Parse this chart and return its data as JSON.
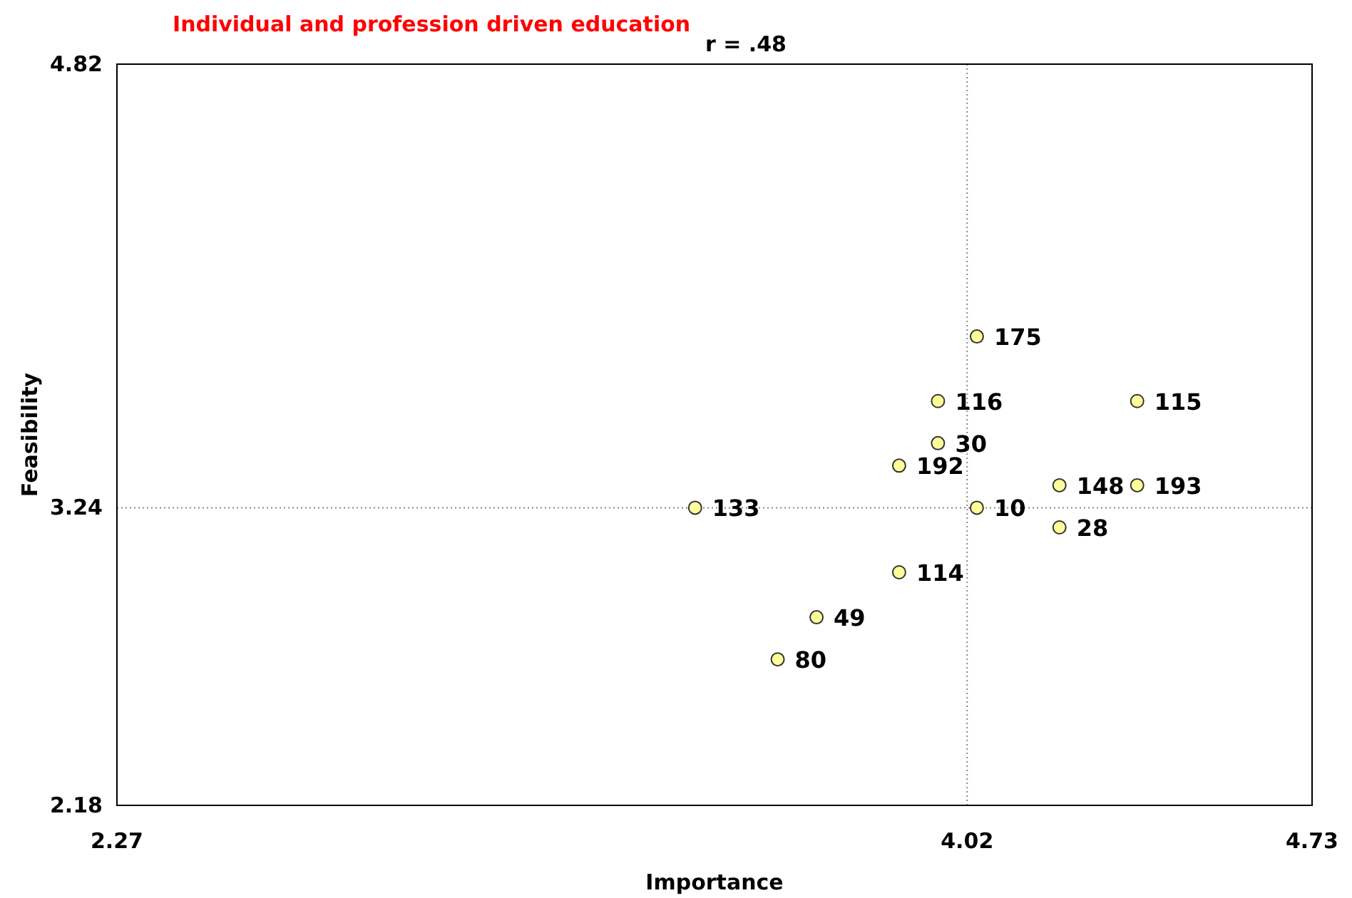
{
  "chart_data": {
    "type": "scatter",
    "title": "Individual and profession driven education",
    "xlabel": "Importance",
    "ylabel": "Feasibility",
    "x": [
      4.04,
      3.96,
      4.37,
      3.96,
      3.88,
      4.21,
      4.37,
      3.46,
      4.04,
      4.21,
      3.88,
      3.71,
      3.63
    ],
    "series": [
      {
        "color": "#ffff99",
        "values": [
          3.85,
          3.62,
          3.62,
          3.47,
          3.39,
          3.32,
          3.32,
          3.24,
          3.24,
          3.17,
          3.01,
          2.85,
          2.7
        ]
      }
    ],
    "xlim": [
      2.27,
      4.73
    ],
    "xticks": [
      2.27,
      4.02,
      4.73
    ],
    "ylim": [
      2.18,
      4.82
    ],
    "yticks": [
      2.18,
      3.24,
      4.82
    ],
    "marker": "circle",
    "grid": false,
    "ref_lines": [
      {
        "axis": "x",
        "value": 4.02,
        "line_style": "dotted",
        "color": "#888888"
      },
      {
        "axis": "y",
        "value": 3.24,
        "line_style": "dotted",
        "color": "#888888"
      }
    ],
    "annotations": [
      "r = .48",
      {
        "text": "175",
        "x": 4.04,
        "y": 3.85
      },
      {
        "text": "116",
        "x": 3.96,
        "y": 3.62
      },
      {
        "text": "115",
        "x": 4.37,
        "y": 3.62
      },
      {
        "text": "30",
        "x": 3.96,
        "y": 3.47
      },
      {
        "text": "192",
        "x": 3.88,
        "y": 3.39
      },
      {
        "text": "148",
        "x": 4.21,
        "y": 3.32
      },
      {
        "text": "193",
        "x": 4.37,
        "y": 3.32
      },
      {
        "text": "133",
        "x": 3.46,
        "y": 3.24
      },
      {
        "text": "10",
        "x": 4.04,
        "y": 3.24
      },
      {
        "text": "28",
        "x": 4.21,
        "y": 3.17
      },
      {
        "text": "114",
        "x": 3.88,
        "y": 3.01
      },
      {
        "text": "49",
        "x": 3.71,
        "y": 2.85
      },
      {
        "text": "80",
        "x": 3.63,
        "y": 2.7
      }
    ]
  }
}
